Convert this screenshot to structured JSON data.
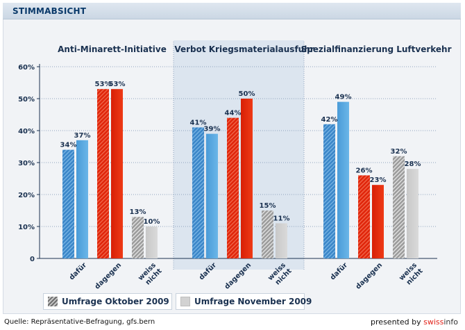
{
  "header": {
    "title": "STIMMABSICHT"
  },
  "legend": {
    "october": "Umfrage Oktober 2009",
    "november": "Umfrage November 2009"
  },
  "footer": {
    "source": "Quelle: Repräsentative-Befragung, gfs.bern",
    "presented_by": "presented by",
    "brand_part1": "swiss",
    "brand_part2": "info"
  },
  "colors": {
    "dafuer_oct": "#3b86c8",
    "dafuer_nov": "#5aa9e0",
    "dagegen": "#e0250a",
    "weiss_nov": "#d0d0d0",
    "panel_highlight": "#dce5ef",
    "axis_label": "#1a3150"
  },
  "chart_data": {
    "type": "bar",
    "ylim": [
      0,
      60
    ],
    "yticks": [
      0,
      10,
      20,
      30,
      40,
      50,
      60
    ],
    "ytick_labels": [
      "0",
      "10%",
      "20%",
      "30%",
      "40%",
      "50%",
      "60%"
    ],
    "series": [
      {
        "name": "Umfrage Oktober 2009"
      },
      {
        "name": "Umfrage November 2009"
      }
    ],
    "groups": [
      {
        "title": "Anti-Minarett-Initiative",
        "categories": [
          {
            "label": [
              "dafür"
            ],
            "values": [
              34,
              37
            ],
            "value_labels": [
              "34%",
              "37%"
            ]
          },
          {
            "label": [
              "dagegen"
            ],
            "values": [
              53,
              53
            ],
            "value_labels": [
              "53%",
              "53%"
            ]
          },
          {
            "label": [
              "weiss",
              "nicht"
            ],
            "values": [
              13,
              10
            ],
            "value_labels": [
              "13%",
              "10%"
            ]
          }
        ]
      },
      {
        "title": "Verbot Kriegsmaterialausfuhr",
        "highlight": true,
        "categories": [
          {
            "label": [
              "dafür"
            ],
            "values": [
              41,
              39
            ],
            "value_labels": [
              "41%",
              "39%"
            ]
          },
          {
            "label": [
              "dagegen"
            ],
            "values": [
              44,
              50
            ],
            "value_labels": [
              "44%",
              "50%"
            ]
          },
          {
            "label": [
              "weiss",
              "nicht"
            ],
            "values": [
              15,
              11
            ],
            "value_labels": [
              "15%",
              "11%"
            ]
          }
        ]
      },
      {
        "title": "Spezialfinanzierung Luftverkehr",
        "categories": [
          {
            "label": [
              "dafür"
            ],
            "values": [
              42,
              49
            ],
            "value_labels": [
              "42%",
              "49%"
            ]
          },
          {
            "label": [
              "dagegen"
            ],
            "values": [
              26,
              23
            ],
            "value_labels": [
              "26%",
              "23%"
            ]
          },
          {
            "label": [
              "weiss",
              "nicht"
            ],
            "values": [
              32,
              28
            ],
            "value_labels": [
              "32%",
              "28%"
            ]
          }
        ]
      }
    ]
  }
}
